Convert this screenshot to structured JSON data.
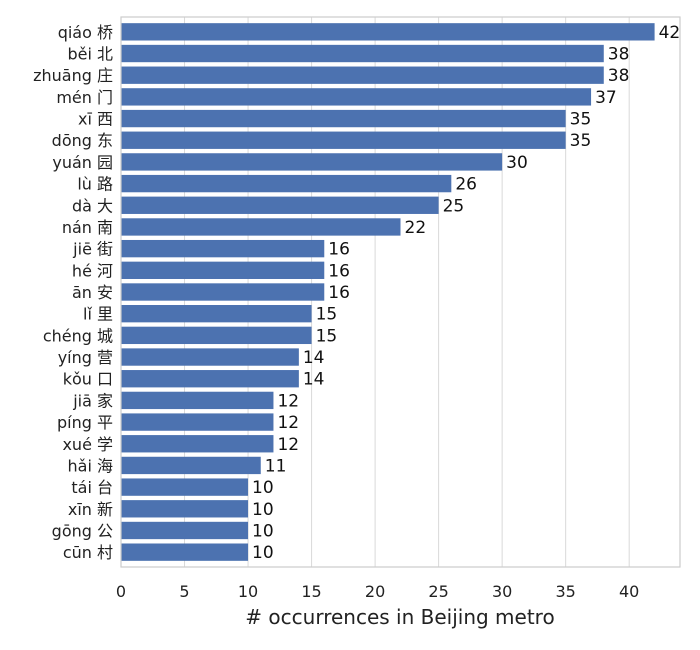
{
  "chart_data": {
    "type": "bar",
    "orientation": "horizontal",
    "xlabel": "# occurrences in Beijing metro",
    "ylabel": "",
    "title": "",
    "xlim": [
      0,
      44
    ],
    "xticks": [
      0,
      5,
      10,
      15,
      20,
      25,
      30,
      35,
      40
    ],
    "grid": true,
    "bar_color": "#4c72b0",
    "categories": [
      "qiáo 桥",
      "běi 北",
      "zhuāng 庄",
      "mén 门",
      "xī 西",
      "dōng 东",
      "yuán 园",
      "lù 路",
      "dà 大",
      "nán 南",
      "jiē 街",
      "hé 河",
      "ān 安",
      "lǐ 里",
      "chéng 城",
      "yíng 营",
      "kǒu 口",
      "jiā 家",
      "píng 平",
      "xué 学",
      "hǎi 海",
      "tái 台",
      "xīn 新",
      "gōng 公",
      "cūn 村"
    ],
    "values": [
      42,
      38,
      38,
      37,
      35,
      35,
      30,
      26,
      25,
      22,
      16,
      16,
      16,
      15,
      15,
      14,
      14,
      12,
      12,
      12,
      11,
      10,
      10,
      10,
      10
    ]
  }
}
